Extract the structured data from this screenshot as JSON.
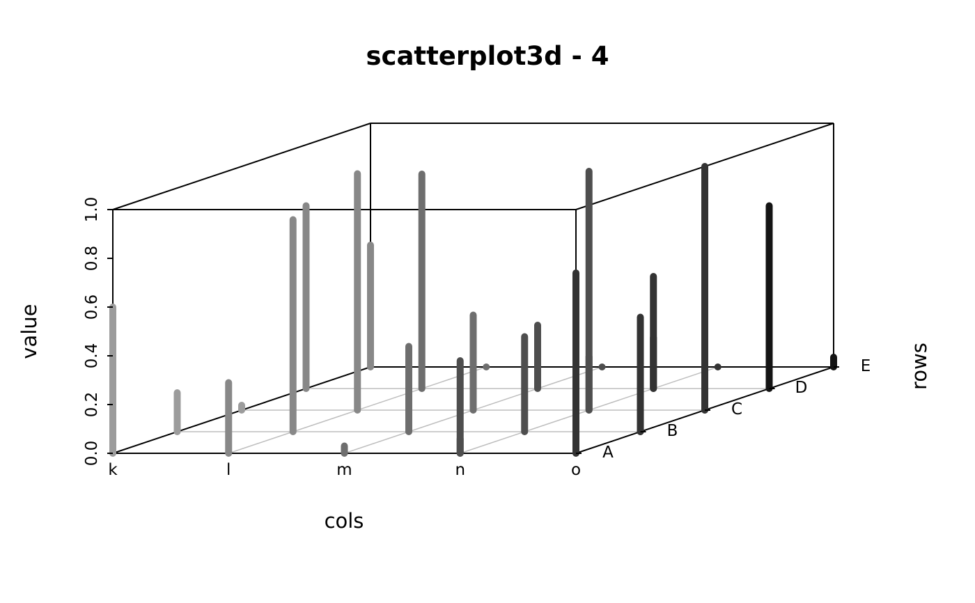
{
  "chart_data": {
    "type": "scatter3d",
    "title": "scatterplot3d - 4",
    "xlabel": "cols",
    "ylabel": "rows",
    "zlabel": "value",
    "x_categories": [
      "k",
      "l",
      "m",
      "n",
      "o"
    ],
    "y_categories": [
      "A",
      "B",
      "C",
      "D",
      "E"
    ],
    "z_ticks": [
      "0.0",
      "0.2",
      "0.4",
      "0.6",
      "0.8",
      "1.0"
    ],
    "zlim": [
      0,
      1
    ],
    "plot_type": "h",
    "grid": true,
    "points": [
      {
        "col": "k",
        "row": "A",
        "value": 0.6
      },
      {
        "col": "k",
        "row": "B",
        "value": 0.16
      },
      {
        "col": "k",
        "row": "C",
        "value": 0.02
      },
      {
        "col": "k",
        "row": "D",
        "value": 0.75
      },
      {
        "col": "k",
        "row": "E",
        "value": 0.5
      },
      {
        "col": "l",
        "row": "A",
        "value": 0.29
      },
      {
        "col": "l",
        "row": "B",
        "value": 0.87
      },
      {
        "col": "l",
        "row": "C",
        "value": 0.97
      },
      {
        "col": "l",
        "row": "D",
        "value": 0.88
      },
      {
        "col": "l",
        "row": "E",
        "value": 0.0
      },
      {
        "col": "m",
        "row": "A",
        "value": 0.03
      },
      {
        "col": "m",
        "row": "B",
        "value": 0.35
      },
      {
        "col": "m",
        "row": "C",
        "value": 0.39
      },
      {
        "col": "m",
        "row": "D",
        "value": 0.26
      },
      {
        "col": "m",
        "row": "E",
        "value": 0.0
      },
      {
        "col": "n",
        "row": "A",
        "value": 0.06
      },
      {
        "col": "n",
        "row": "B",
        "value": 0.39
      },
      {
        "col": "n",
        "row": "C",
        "value": 0.22
      },
      {
        "col": "n",
        "row": "D",
        "value": 0.21
      },
      {
        "col": "n",
        "row": "E",
        "value": 0.0
      },
      {
        "col": "o",
        "row": "A",
        "value": 0.74
      },
      {
        "col": "o",
        "row": "B",
        "value": 0.21
      },
      {
        "col": "o",
        "row": "C",
        "value": 1.0
      },
      {
        "col": "o",
        "row": "D",
        "value": 0.75
      },
      {
        "col": "o",
        "row": "E",
        "value": 0.04
      }
    ],
    "extra_points": [
      {
        "col": "n",
        "row": "C",
        "value": 0.98
      },
      {
        "col": "n",
        "row": "D",
        "value": 0.46
      },
      {
        "col": "o",
        "row": "C",
        "value": 0.85
      },
      {
        "col": "o",
        "row": "B",
        "value": 0.47
      },
      {
        "col": "n",
        "row": "A",
        "value": 0.38
      }
    ],
    "colors": [
      "#9c9c9c",
      "#888888",
      "#6e6e6e",
      "#4e4e4e",
      "#333333",
      "#141414"
    ]
  }
}
